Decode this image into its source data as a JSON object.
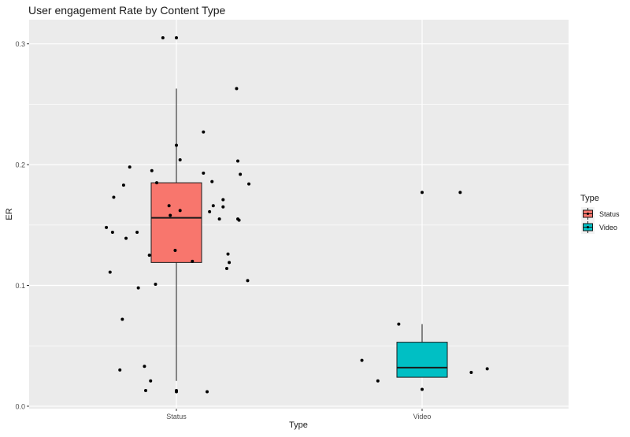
{
  "chart_data": {
    "type": "box",
    "title": "User engagement Rate by Content Type",
    "xlabel": "Type",
    "ylabel": "ER",
    "categories": [
      "Status",
      "Video"
    ],
    "ylim": [
      -0.002,
      0.32
    ],
    "yticks": [
      0.0,
      0.1,
      0.2,
      0.3
    ],
    "ytick_labels": [
      "0.0",
      "0.1",
      "0.2",
      "0.3"
    ],
    "grid": true,
    "legend": {
      "title": "Type",
      "position": "right",
      "entries": [
        "Status",
        "Video"
      ]
    },
    "colors": {
      "Status": "#F8766D",
      "Video": "#00BFC4",
      "panel": "#EBEBEB",
      "grid": "#FFFFFF"
    },
    "series": [
      {
        "name": "Status",
        "box": {
          "whisker_low": 0.021,
          "q1": 0.119,
          "median": 0.156,
          "q3": 0.185,
          "whisker_high": 0.263
        },
        "points": [
          [
            -0.57,
            0.148
          ],
          [
            -0.54,
            0.111
          ],
          [
            -0.52,
            0.144
          ],
          [
            -0.51,
            0.173
          ],
          [
            -0.46,
            0.03
          ],
          [
            -0.44,
            0.072
          ],
          [
            -0.43,
            0.183
          ],
          [
            -0.41,
            0.139
          ],
          [
            -0.38,
            0.198
          ],
          [
            -0.32,
            0.144
          ],
          [
            -0.31,
            0.098
          ],
          [
            -0.26,
            0.033
          ],
          [
            -0.25,
            0.013
          ],
          [
            -0.22,
            0.125
          ],
          [
            -0.21,
            0.021
          ],
          [
            -0.2,
            0.195
          ],
          [
            -0.17,
            0.101
          ],
          [
            -0.16,
            0.185
          ],
          [
            -0.11,
            0.305
          ],
          [
            -0.06,
            0.166
          ],
          [
            -0.05,
            0.158
          ],
          [
            -0.01,
            0.129
          ],
          [
            0.0,
            0.216
          ],
          [
            0.0,
            0.305
          ],
          [
            0.0,
            0.012
          ],
          [
            0.0,
            0.013
          ],
          [
            0.03,
            0.162
          ],
          [
            0.03,
            0.204
          ],
          [
            0.13,
            0.12
          ],
          [
            0.22,
            0.227
          ],
          [
            0.22,
            0.193
          ],
          [
            0.25,
            0.012
          ],
          [
            0.27,
            0.161
          ],
          [
            0.29,
            0.186
          ],
          [
            0.3,
            0.166
          ],
          [
            0.35,
            0.155
          ],
          [
            0.38,
            0.171
          ],
          [
            0.38,
            0.165
          ],
          [
            0.41,
            0.114
          ],
          [
            0.42,
            0.126
          ],
          [
            0.43,
            0.119
          ],
          [
            0.49,
            0.263
          ],
          [
            0.5,
            0.155
          ],
          [
            0.5,
            0.203
          ],
          [
            0.52,
            0.192
          ],
          [
            0.51,
            0.154
          ],
          [
            0.58,
            0.104
          ],
          [
            0.59,
            0.184
          ]
        ]
      },
      {
        "name": "Video",
        "box": {
          "whisker_low": 0.024,
          "q1": 0.024,
          "median": 0.032,
          "q3": 0.053,
          "whisker_high": 0.068
        },
        "points": [
          [
            -0.49,
            0.038
          ],
          [
            -0.36,
            0.021
          ],
          [
            -0.19,
            0.068
          ],
          [
            0.0,
            0.177
          ],
          [
            0.0,
            0.014
          ],
          [
            0.31,
            0.177
          ],
          [
            0.4,
            0.028
          ],
          [
            0.53,
            0.031
          ]
        ]
      }
    ]
  }
}
